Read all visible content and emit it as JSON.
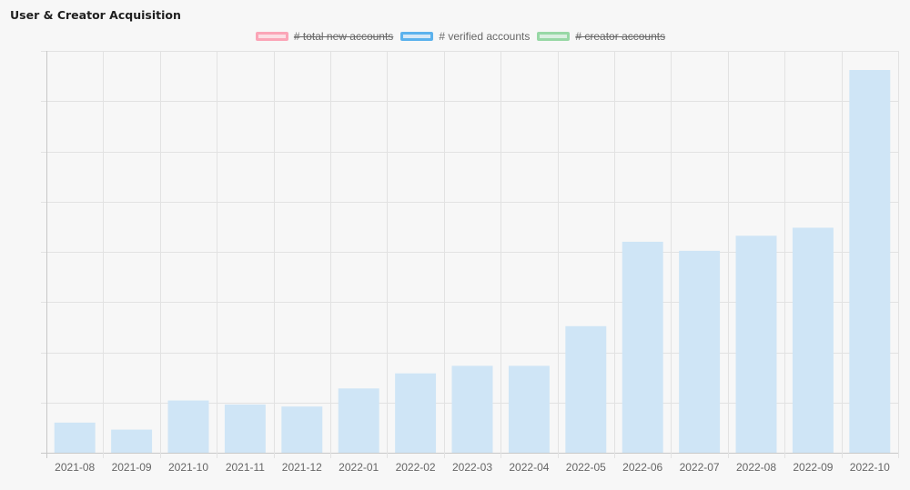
{
  "title": "User & Creator Acquisition",
  "legend": [
    {
      "label": "# total new accounts",
      "color": "#ff6384",
      "fill": "#ffcdd6",
      "hidden": true
    },
    {
      "label": "# verified accounts",
      "color": "#36a2eb",
      "fill": "#cfe5f6",
      "hidden": false
    },
    {
      "label": "# creator accounts",
      "color": "#4bc065",
      "fill": "#c4ead0",
      "hidden": true
    }
  ],
  "chart_data": {
    "type": "bar",
    "title": "User & Creator Acquisition",
    "categories": [
      "2021-08",
      "2021-09",
      "2021-10",
      "2021-11",
      "2021-12",
      "2022-01",
      "2022-02",
      "2022-03",
      "2022-04",
      "2022-05",
      "2022-06",
      "2022-07",
      "2022-08",
      "2022-09",
      "2022-10"
    ],
    "series": [
      {
        "name": "# verified accounts",
        "values": [
          60,
          46,
          104,
          96,
          92,
          128,
          158,
          173,
          173,
          252,
          420,
          402,
          432,
          448,
          762
        ]
      }
    ],
    "ylim": [
      0,
      800
    ],
    "y_tick_labels_visible": false,
    "grid": true,
    "legend_position": "top"
  }
}
